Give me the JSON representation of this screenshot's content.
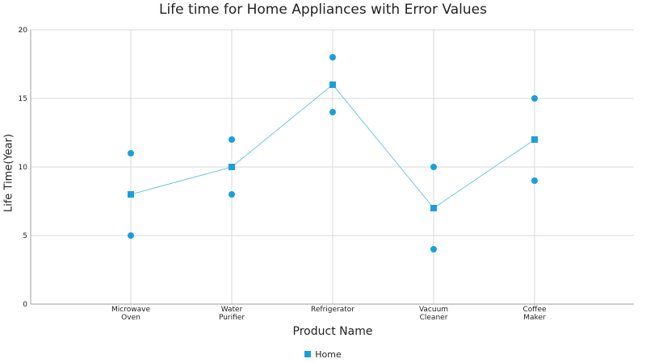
{
  "chart_data": {
    "type": "line",
    "title": "Life time for Home Appliances with Error Values",
    "xlabel": "Product Name",
    "ylabel": "Life Time(Year)",
    "categories": [
      "Microwave\nOven",
      "Water\nPurifier",
      "Refrigerator",
      "Vacuum\nCleaner",
      "Coffee\nMaker"
    ],
    "ylim": [
      0,
      20
    ],
    "yticks": [
      0,
      5,
      10,
      15,
      20
    ],
    "grid": true,
    "legend_position": "bottom",
    "series": [
      {
        "name": "Home",
        "color": "#1a9fdb",
        "values": [
          8,
          10,
          16,
          7,
          12
        ],
        "error_high": [
          11,
          12,
          18,
          10,
          15
        ],
        "error_low": [
          5,
          8,
          14,
          4,
          9
        ]
      }
    ]
  }
}
